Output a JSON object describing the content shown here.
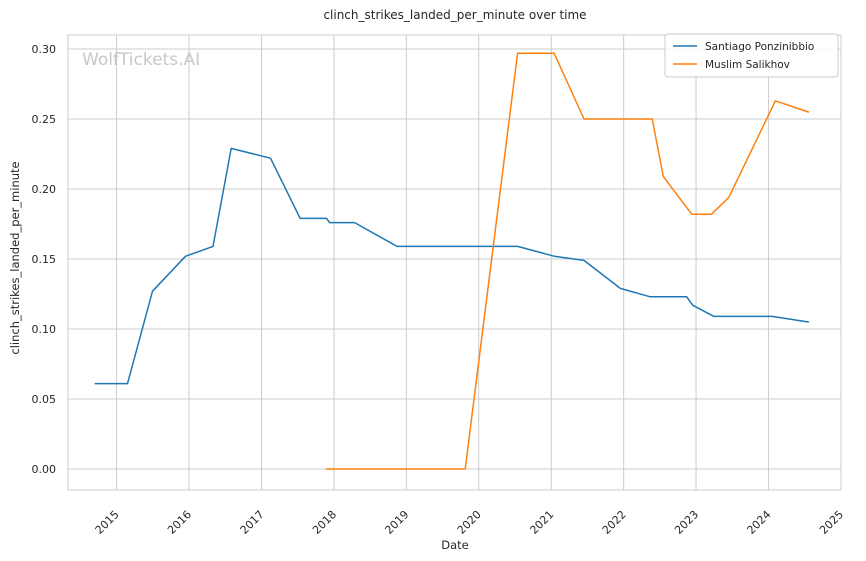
{
  "chart_data": {
    "type": "line",
    "title": "clinch_strikes_landed_per_minute over time",
    "xlabel": "Date",
    "ylabel": "clinch_strikes_landed_per_minute",
    "watermark": "WolfTickets.AI",
    "ylim": [
      -0.015,
      0.31
    ],
    "xlim": [
      "2014-05-01",
      "2025-01-01"
    ],
    "y_ticks": [
      "0.00",
      "0.05",
      "0.10",
      "0.15",
      "0.20",
      "0.25",
      "0.30"
    ],
    "x_ticks": [
      "2015",
      "2016",
      "2017",
      "2018",
      "2019",
      "2020",
      "2021",
      "2022",
      "2023",
      "2024",
      "2025"
    ],
    "grid": true,
    "legend_position": "top-right",
    "series": [
      {
        "name": "Santiago Ponzinibbio",
        "color": "#1f77b4",
        "points": [
          {
            "x": "2014-09-15",
            "y": 0.061
          },
          {
            "x": "2015-02-25",
            "y": 0.061
          },
          {
            "x": "2015-07-01",
            "y": 0.127
          },
          {
            "x": "2015-12-15",
            "y": 0.152
          },
          {
            "x": "2016-05-01",
            "y": 0.159
          },
          {
            "x": "2016-08-01",
            "y": 0.229
          },
          {
            "x": "2017-02-15",
            "y": 0.222
          },
          {
            "x": "2017-07-15",
            "y": 0.179
          },
          {
            "x": "2017-11-25",
            "y": 0.179
          },
          {
            "x": "2017-12-10",
            "y": 0.176
          },
          {
            "x": "2018-04-15",
            "y": 0.176
          },
          {
            "x": "2018-11-15",
            "y": 0.159
          },
          {
            "x": "2020-07-15",
            "y": 0.159
          },
          {
            "x": "2021-01-15",
            "y": 0.152
          },
          {
            "x": "2021-06-15",
            "y": 0.149
          },
          {
            "x": "2021-12-15",
            "y": 0.129
          },
          {
            "x": "2022-05-15",
            "y": 0.123
          },
          {
            "x": "2022-11-15",
            "y": 0.123
          },
          {
            "x": "2022-12-15",
            "y": 0.117
          },
          {
            "x": "2023-04-01",
            "y": 0.109
          },
          {
            "x": "2024-01-20",
            "y": 0.109
          },
          {
            "x": "2024-07-20",
            "y": 0.105
          }
        ]
      },
      {
        "name": "Muslim Salikhov",
        "color": "#ff7f0e",
        "points": [
          {
            "x": "2017-11-25",
            "y": 0.0
          },
          {
            "x": "2019-10-25",
            "y": 0.0
          },
          {
            "x": "2020-07-15",
            "y": 0.297
          },
          {
            "x": "2021-01-15",
            "y": 0.297
          },
          {
            "x": "2021-06-15",
            "y": 0.25
          },
          {
            "x": "2022-05-25",
            "y": 0.25
          },
          {
            "x": "2022-07-20",
            "y": 0.209
          },
          {
            "x": "2022-12-10",
            "y": 0.182
          },
          {
            "x": "2023-03-20",
            "y": 0.182
          },
          {
            "x": "2023-06-15",
            "y": 0.194
          },
          {
            "x": "2024-02-05",
            "y": 0.263
          },
          {
            "x": "2024-07-20",
            "y": 0.255
          }
        ]
      }
    ]
  }
}
